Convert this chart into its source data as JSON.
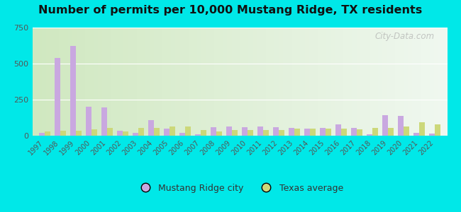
{
  "title": "Number of permits per 10,000 Mustang Ridge, TX residents",
  "years": [
    1997,
    1998,
    1999,
    2000,
    2001,
    2002,
    2003,
    2004,
    2005,
    2006,
    2007,
    2008,
    2009,
    2010,
    2011,
    2012,
    2013,
    2014,
    2015,
    2016,
    2017,
    2018,
    2019,
    2020,
    2021,
    2022
  ],
  "city_values": [
    20,
    540,
    625,
    200,
    195,
    35,
    20,
    110,
    50,
    20,
    10,
    60,
    65,
    60,
    65,
    60,
    55,
    50,
    55,
    80,
    55,
    10,
    140,
    135,
    20,
    15
  ],
  "texas_values": [
    30,
    35,
    35,
    45,
    55,
    30,
    55,
    55,
    65,
    65,
    40,
    30,
    40,
    40,
    40,
    40,
    50,
    50,
    50,
    50,
    45,
    55,
    55,
    65,
    95,
    80
  ],
  "city_color": "#c9a8e0",
  "texas_color": "#ccd87a",
  "ylim": [
    0,
    750
  ],
  "yticks": [
    0,
    250,
    500,
    750
  ],
  "background_color_fig": "#00e8e8",
  "watermark": "City-Data.com",
  "legend_city": "Mustang Ridge city",
  "legend_texas": "Texas average",
  "bar_width": 0.38,
  "grad_left": "#d0e8c0",
  "grad_right": "#f0f8f0"
}
